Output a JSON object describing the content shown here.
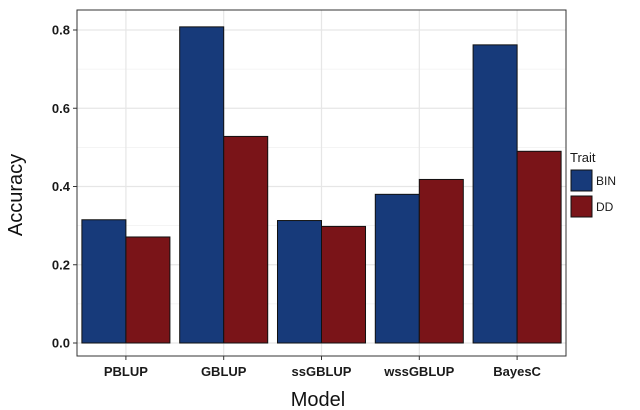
{
  "chart_data": {
    "type": "bar",
    "categories": [
      "PBLUP",
      "GBLUP",
      "ssGBLUP",
      "wssGBLUP",
      "BayesC"
    ],
    "series": [
      {
        "name": "BIN",
        "color": "#173a7a",
        "values": [
          0.315,
          0.808,
          0.313,
          0.38,
          0.762
        ]
      },
      {
        "name": "DD",
        "color": "#7a1418",
        "values": [
          0.271,
          0.528,
          0.298,
          0.418,
          0.49
        ]
      }
    ],
    "xlabel": "Model",
    "ylabel": "Accuracy",
    "ylim": [
      0,
      0.85
    ],
    "yticks": [
      0.0,
      0.2,
      0.4,
      0.6,
      0.8
    ],
    "ytick_labels": [
      "0.0",
      "0.2",
      "0.4",
      "0.6",
      "0.8"
    ],
    "legend": {
      "title": "Trait",
      "position": "right"
    },
    "grid": true,
    "colors": {
      "panel_border": "#333333",
      "grid": "#e6e6e6",
      "bar_outline": "#111111"
    }
  }
}
